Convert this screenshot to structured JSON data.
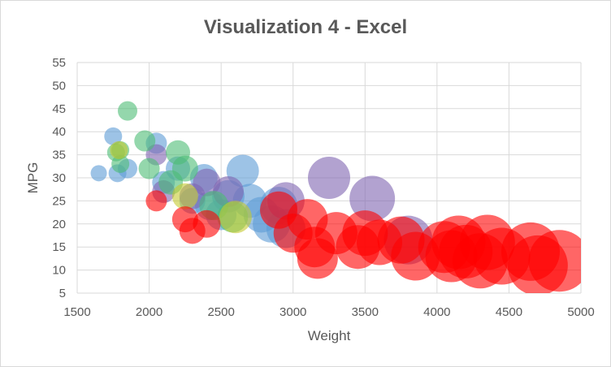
{
  "chart_data": {
    "type": "scatter",
    "subtype": "bubble",
    "title": "Visualization 4 - Excel",
    "xlabel": "Weight",
    "ylabel": "MPG",
    "xlim": [
      1500,
      5000
    ],
    "ylim": [
      5,
      55
    ],
    "xticks": [
      1500,
      2000,
      2500,
      3000,
      3500,
      4000,
      4500,
      5000
    ],
    "yticks": [
      5,
      10,
      15,
      20,
      25,
      30,
      35,
      40,
      45,
      50,
      55
    ],
    "grid": true,
    "legend": "none",
    "series": [
      {
        "color": "#5b9bd5",
        "points": [
          {
            "x": 1650,
            "y": 31,
            "size": 1.0
          },
          {
            "x": 1750,
            "y": 39,
            "size": 1.1
          },
          {
            "x": 1780,
            "y": 31,
            "size": 1.1
          },
          {
            "x": 1850,
            "y": 32,
            "size": 1.2
          },
          {
            "x": 2050,
            "y": 37.5,
            "size": 1.3
          },
          {
            "x": 2100,
            "y": 29,
            "size": 1.4
          },
          {
            "x": 2200,
            "y": 32,
            "size": 1.5
          },
          {
            "x": 2300,
            "y": 25,
            "size": 1.6
          },
          {
            "x": 2380,
            "y": 30,
            "size": 1.7
          },
          {
            "x": 2420,
            "y": 24,
            "size": 1.8
          },
          {
            "x": 2500,
            "y": 22,
            "size": 1.9
          },
          {
            "x": 2550,
            "y": 26,
            "size": 2.0
          },
          {
            "x": 2650,
            "y": 31.5,
            "size": 2.0
          },
          {
            "x": 2700,
            "y": 25,
            "size": 2.1
          },
          {
            "x": 2780,
            "y": 22,
            "size": 2.2
          },
          {
            "x": 2850,
            "y": 20,
            "size": 2.3
          },
          {
            "x": 2900,
            "y": 24,
            "size": 2.3
          },
          {
            "x": 2950,
            "y": 19,
            "size": 2.4
          }
        ]
      },
      {
        "color": "#7f64b0",
        "points": [
          {
            "x": 2050,
            "y": 35,
            "size": 1.3
          },
          {
            "x": 2100,
            "y": 27,
            "size": 1.4
          },
          {
            "x": 2300,
            "y": 26,
            "size": 1.6
          },
          {
            "x": 2400,
            "y": 29,
            "size": 1.7
          },
          {
            "x": 2550,
            "y": 27,
            "size": 1.9
          },
          {
            "x": 2950,
            "y": 25,
            "size": 2.3
          },
          {
            "x": 3250,
            "y": 30,
            "size": 2.6
          },
          {
            "x": 3550,
            "y": 25.5,
            "size": 2.8
          },
          {
            "x": 3800,
            "y": 16.5,
            "size": 3.0
          }
        ]
      },
      {
        "color": "#4dbd74",
        "points": [
          {
            "x": 1770,
            "y": 35.5,
            "size": 1.1
          },
          {
            "x": 1800,
            "y": 36,
            "size": 1.1
          },
          {
            "x": 1800,
            "y": 33,
            "size": 1.1
          },
          {
            "x": 1850,
            "y": 44.5,
            "size": 1.2
          },
          {
            "x": 1970,
            "y": 38,
            "size": 1.3
          },
          {
            "x": 2000,
            "y": 32,
            "size": 1.3
          },
          {
            "x": 2150,
            "y": 29,
            "size": 1.5
          },
          {
            "x": 2200,
            "y": 35.5,
            "size": 1.5
          },
          {
            "x": 2250,
            "y": 32,
            "size": 1.6
          },
          {
            "x": 2450,
            "y": 24,
            "size": 1.8
          },
          {
            "x": 2580,
            "y": 21.5,
            "size": 1.9
          }
        ]
      },
      {
        "color": "#c4c930",
        "points": [
          {
            "x": 1790,
            "y": 36,
            "size": 1.1
          },
          {
            "x": 2250,
            "y": 26,
            "size": 1.6
          },
          {
            "x": 2600,
            "y": 21.5,
            "size": 2.0
          }
        ]
      },
      {
        "color": "#ff0000",
        "points": [
          {
            "x": 2050,
            "y": 25,
            "size": 1.3
          },
          {
            "x": 2250,
            "y": 21,
            "size": 1.6
          },
          {
            "x": 2300,
            "y": 18.5,
            "size": 1.6
          },
          {
            "x": 2400,
            "y": 20,
            "size": 1.7
          },
          {
            "x": 2900,
            "y": 23,
            "size": 2.3
          },
          {
            "x": 3000,
            "y": 18,
            "size": 2.4
          },
          {
            "x": 3100,
            "y": 21,
            "size": 2.5
          },
          {
            "x": 3150,
            "y": 15,
            "size": 2.5
          },
          {
            "x": 3170,
            "y": 12.5,
            "size": 2.5
          },
          {
            "x": 3300,
            "y": 18,
            "size": 2.6
          },
          {
            "x": 3450,
            "y": 15,
            "size": 2.7
          },
          {
            "x": 3500,
            "y": 18,
            "size": 2.8
          },
          {
            "x": 3600,
            "y": 16,
            "size": 2.8
          },
          {
            "x": 3750,
            "y": 16.5,
            "size": 2.9
          },
          {
            "x": 3850,
            "y": 13,
            "size": 3.0
          },
          {
            "x": 4050,
            "y": 15,
            "size": 3.2
          },
          {
            "x": 4100,
            "y": 13,
            "size": 3.2
          },
          {
            "x": 4150,
            "y": 16,
            "size": 3.3
          },
          {
            "x": 4200,
            "y": 14,
            "size": 3.3
          },
          {
            "x": 4300,
            "y": 12,
            "size": 3.4
          },
          {
            "x": 4350,
            "y": 16,
            "size": 3.4
          },
          {
            "x": 4450,
            "y": 13,
            "size": 3.5
          },
          {
            "x": 4650,
            "y": 14,
            "size": 3.6
          },
          {
            "x": 4700,
            "y": 11,
            "size": 3.7
          },
          {
            "x": 4850,
            "y": 12,
            "size": 3.8
          }
        ]
      }
    ]
  }
}
